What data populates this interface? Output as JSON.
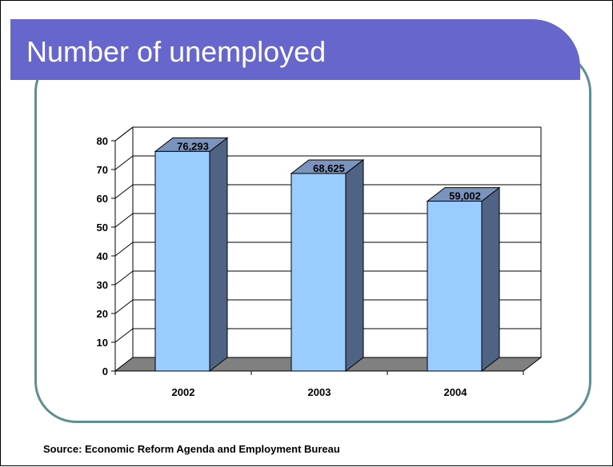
{
  "slide": {
    "title": "Number of unemployed",
    "source": "Source: Economic Reform Agenda and Employment Bureau"
  },
  "colors": {
    "title_bar": "#6666cc",
    "frame": "#5f8f8f",
    "bar_front": "#99ccff",
    "bar_side": "#4f6384",
    "bar_top": "#7a94bd",
    "floor": "#808080"
  },
  "chart_data": {
    "type": "bar",
    "title": "",
    "xlabel": "",
    "ylabel": "",
    "categories": [
      "2002",
      "2003",
      "2004"
    ],
    "values": [
      76.293,
      68.625,
      59.002
    ],
    "data_labels": [
      "76,293",
      "68,625",
      "59,002"
    ],
    "ylim": [
      0,
      80
    ],
    "yticks": [
      "0",
      "10",
      "20",
      "30",
      "40",
      "50",
      "60",
      "70",
      "80"
    ],
    "grid": true,
    "legend": "none",
    "style": "3d-column"
  }
}
